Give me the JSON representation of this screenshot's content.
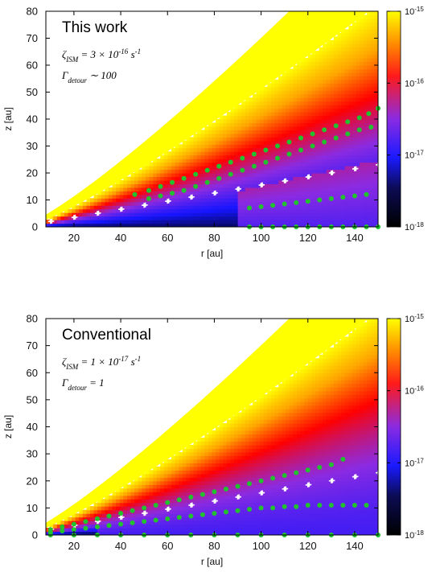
{
  "chart_data": [
    {
      "type": "heatmap",
      "title": "This work",
      "annotations": [
        "ζ_ISM = 3 × 10^-16 s^-1",
        "Γ_detour ∼ 100"
      ],
      "xlabel": "r [au]",
      "ylabel": "z [au]",
      "xlim": [
        8,
        150
      ],
      "ylim": [
        0,
        80
      ],
      "xticks": [
        "20",
        "40",
        "60",
        "80",
        "100",
        "120",
        "140"
      ],
      "yticks": [
        "0",
        "10",
        "20",
        "30",
        "40",
        "50",
        "60",
        "70",
        "80"
      ],
      "colorbar": {
        "ticks": [
          "10^-15",
          "10^-16",
          "10^-17",
          "10^-18"
        ],
        "range": [
          1e-18,
          1e-15
        ],
        "scale": "log",
        "colormap": [
          "#000000",
          "#1515ff",
          "#8b2be2",
          "#ff0000",
          "#ffa500",
          "#ffff00"
        ]
      },
      "series": [
        {
          "marker": "white-crosses",
          "x": [
            10,
            20,
            30,
            40,
            50,
            60,
            70,
            80,
            90,
            100,
            110,
            120,
            130,
            140,
            150
          ],
          "y": [
            2.0,
            3.5,
            5.0,
            6.5,
            8.0,
            9.5,
            11.0,
            12.5,
            14.0,
            15.5,
            17.0,
            18.5,
            20.0,
            21.5,
            23.0
          ]
        },
        {
          "marker": "green-dots",
          "x": [
            46,
            52,
            57,
            62,
            67,
            72,
            77,
            82,
            87,
            92,
            97,
            102,
            107,
            112,
            117,
            122,
            127,
            132,
            137,
            142,
            146,
            150
          ],
          "y": [
            12,
            13.5,
            15,
            16.5,
            18,
            19.5,
            21,
            22.5,
            24,
            25.5,
            27,
            28.5,
            30,
            31.5,
            33,
            34.5,
            36,
            37.5,
            39,
            40.5,
            42,
            44
          ]
        },
        {
          "marker": "green-dots",
          "x": [
            52,
            57,
            62,
            67,
            72,
            77,
            82,
            87,
            92,
            97,
            102,
            107,
            112,
            117,
            122,
            127,
            132,
            137,
            142,
            147
          ],
          "y": [
            10.5,
            11.5,
            12.5,
            13.5,
            15,
            16.5,
            18,
            19.5,
            21,
            22.5,
            24,
            25.5,
            27,
            28.5,
            30,
            31.5,
            33,
            34.5,
            36,
            37
          ]
        },
        {
          "marker": "green-dots",
          "x": [
            95,
            100,
            105,
            110,
            115,
            120,
            125,
            130,
            135,
            140,
            145
          ],
          "y": [
            7,
            7.5,
            8,
            8.5,
            9,
            9.5,
            10,
            10.5,
            11,
            11.5,
            12
          ]
        },
        {
          "marker": "green-dots",
          "x": [
            95,
            100,
            105,
            110,
            115,
            120,
            125,
            130,
            135,
            140,
            145,
            150
          ],
          "y": [
            0,
            0,
            0,
            0,
            0,
            0,
            0,
            0,
            0,
            0,
            0,
            0
          ]
        }
      ]
    },
    {
      "type": "heatmap",
      "title": "Conventional",
      "annotations": [
        "ζ_ISM = 1 × 10^-17 s^-1",
        "Γ_detour = 1"
      ],
      "xlabel": "r [au]",
      "ylabel": "z [au]",
      "xlim": [
        8,
        150
      ],
      "ylim": [
        0,
        80
      ],
      "xticks": [
        "20",
        "40",
        "60",
        "80",
        "100",
        "120",
        "140"
      ],
      "yticks": [
        "0",
        "10",
        "20",
        "30",
        "40",
        "50",
        "60",
        "70",
        "80"
      ],
      "colorbar": {
        "ticks": [
          "10^-15",
          "10^-16",
          "10^-17",
          "10^-18"
        ],
        "range": [
          1e-18,
          1e-15
        ],
        "scale": "log",
        "colormap": [
          "#000000",
          "#1515ff",
          "#8b2be2",
          "#ff0000",
          "#ffa500",
          "#ffff00"
        ]
      },
      "series": [
        {
          "marker": "white-crosses",
          "x": [
            10,
            20,
            30,
            40,
            50,
            60,
            70,
            80,
            90,
            100,
            110,
            120,
            130,
            140,
            150
          ],
          "y": [
            2.0,
            3.5,
            5.0,
            6.5,
            8.0,
            9.5,
            11.0,
            12.5,
            14.0,
            15.5,
            17.0,
            18.5,
            20.0,
            21.5,
            23.0
          ]
        },
        {
          "marker": "green-dots",
          "x": [
            10,
            15,
            20,
            25,
            30,
            35,
            40,
            45,
            50,
            55,
            60,
            65,
            70,
            75,
            80,
            85,
            90,
            95,
            100,
            105,
            110,
            115,
            120,
            125,
            130,
            135
          ],
          "y": [
            2,
            3,
            4,
            5,
            6,
            7,
            8,
            9,
            10,
            11,
            12,
            13,
            14,
            15,
            16,
            17,
            18,
            19,
            20,
            21,
            22,
            23,
            24,
            25,
            26,
            28
          ]
        },
        {
          "marker": "green-dots",
          "x": [
            10,
            15,
            20,
            25,
            30,
            35,
            40,
            45,
            50,
            55,
            60,
            65,
            70,
            75,
            80,
            85,
            90,
            95,
            100,
            105,
            110,
            115,
            120,
            125,
            130,
            135,
            140,
            145
          ],
          "y": [
            1,
            1.5,
            2,
            2.5,
            3,
            3.5,
            4,
            4.5,
            5,
            5.5,
            6,
            6.5,
            7,
            7.5,
            8,
            8.5,
            9,
            9.5,
            10,
            10,
            10.5,
            10.5,
            11,
            11,
            11,
            11,
            11,
            11
          ]
        },
        {
          "marker": "green-dots",
          "x": [
            10,
            20,
            30,
            40,
            50,
            60,
            70,
            80,
            90,
            100,
            110,
            120,
            130,
            140,
            150
          ],
          "y": [
            0,
            0,
            0,
            0,
            0,
            0,
            0,
            0,
            0,
            0,
            0,
            0,
            0,
            0,
            0
          ]
        }
      ]
    }
  ]
}
